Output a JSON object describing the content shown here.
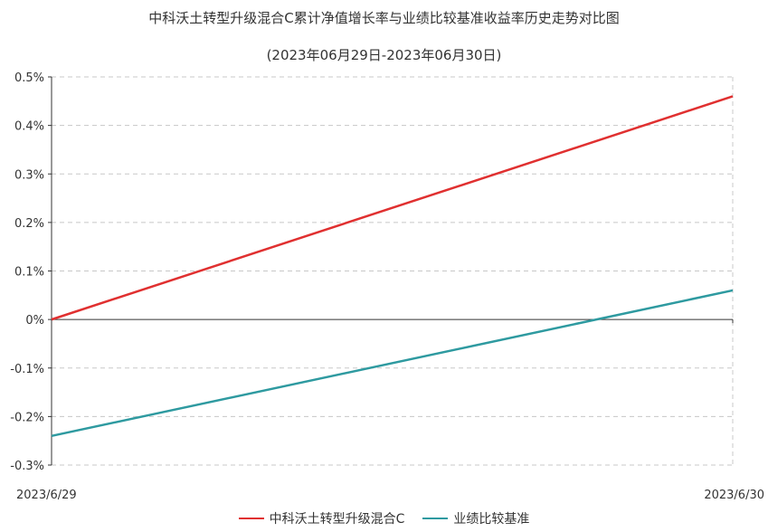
{
  "chart_data": {
    "type": "line",
    "title": "中科沃土转型升级混合C累计净值增长率与业绩比较基准收益率历史走势对比图",
    "subtitle": "(2023年06月29日-2023年06月30日)",
    "x": [
      "2023/6/29",
      "2023/6/30"
    ],
    "x_tick_labels": [
      "2023/6/29",
      "2023/6/30"
    ],
    "ylim": [
      -0.3,
      0.5
    ],
    "y_ticks": [
      0.5,
      0.4,
      0.3,
      0.2,
      0.1,
      0,
      -0.1,
      -0.2,
      -0.3
    ],
    "y_tick_labels": [
      "0.5%",
      "0.4%",
      "0.3%",
      "0.2%",
      "0.1%",
      "0%",
      "-0.1%",
      "-0.2%",
      "-0.3%"
    ],
    "grid": true,
    "legend_position": "bottom",
    "series": [
      {
        "name": "中科沃土转型升级混合C",
        "values": [
          0,
          0.46
        ],
        "color": "#e03030"
      },
      {
        "name": "业绩比较基准",
        "values": [
          -0.24,
          0.06
        ],
        "color": "#2e9aa0"
      }
    ]
  }
}
